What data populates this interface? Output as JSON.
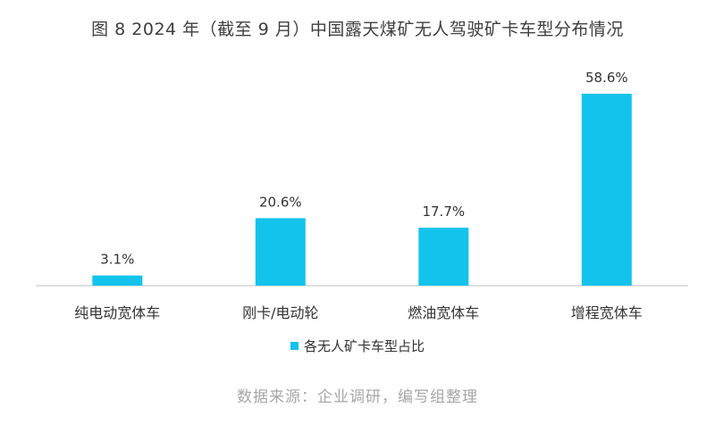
{
  "chart_data": {
    "type": "bar",
    "title": "图 8 2024 年（截至 9 月）中国露天煤矿无人驾驶矿卡车型分布情况",
    "categories": [
      "纯电动宽体车",
      "刚卡/电动轮",
      "燃油宽体车",
      "增程宽体车"
    ],
    "series": [
      {
        "name": "各无人矿卡车型占比",
        "values": [
          3.1,
          20.6,
          17.7,
          58.6
        ],
        "labels": [
          "3.1%",
          "20.6%",
          "17.7%",
          "58.6%"
        ]
      }
    ],
    "xlabel": "",
    "ylabel": "",
    "ylim": [
      0,
      58.6
    ],
    "grid": false,
    "legend": "bottom-center",
    "colors": {
      "bar": "#14C3EC",
      "axis": "#BFBFBF",
      "text": "#333333",
      "source": "#A6A6A6"
    }
  },
  "source": "数据来源：企业调研，编写组整理"
}
